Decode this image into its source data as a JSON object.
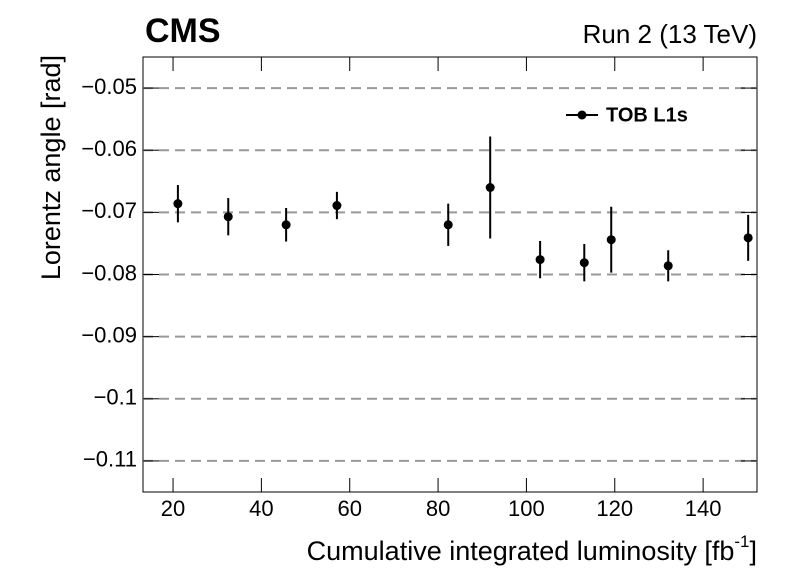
{
  "chart_data": {
    "type": "errorbar",
    "title": "CMS",
    "subtitle": "Run 2 (13 TeV)",
    "x_label": {
      "text": "Cumulative integrated luminosity [fb",
      "sup": "-1",
      "end": "]"
    },
    "y_label": "Lorentz angle [rad]",
    "x": [
      21.1,
      32.5,
      45.6,
      57.1,
      82.3,
      91.8,
      103.1,
      113.1,
      119.2,
      132.1,
      150.2
    ],
    "series": [
      {
        "name": "TOB L1s",
        "color": "#000000",
        "values": [
          -0.0686,
          -0.0707,
          -0.072,
          -0.0689,
          -0.072,
          -0.066,
          -0.0776,
          -0.0781,
          -0.0744,
          -0.0786,
          -0.0741
        ],
        "errors": [
          0.003,
          0.003,
          0.0027,
          0.0022,
          0.0034,
          0.0082,
          0.003,
          0.003,
          0.0053,
          0.0025,
          0.0037
        ]
      }
    ],
    "xlim": [
      13.2,
      152.2
    ],
    "ylim": [
      -0.115,
      -0.045
    ],
    "xticks": [
      20,
      40,
      60,
      80,
      100,
      120,
      140
    ],
    "yticks": [
      {
        "value": -0.05,
        "label": "−0.05"
      },
      {
        "value": -0.06,
        "label": "−0.06"
      },
      {
        "value": -0.07,
        "label": "−0.07"
      },
      {
        "value": -0.08,
        "label": "−0.08"
      },
      {
        "value": -0.09,
        "label": "−0.09"
      },
      {
        "value": -0.1,
        "label": "−0.1"
      },
      {
        "value": -0.11,
        "label": "−0.11"
      }
    ],
    "grid": true,
    "legend": "upper right"
  }
}
